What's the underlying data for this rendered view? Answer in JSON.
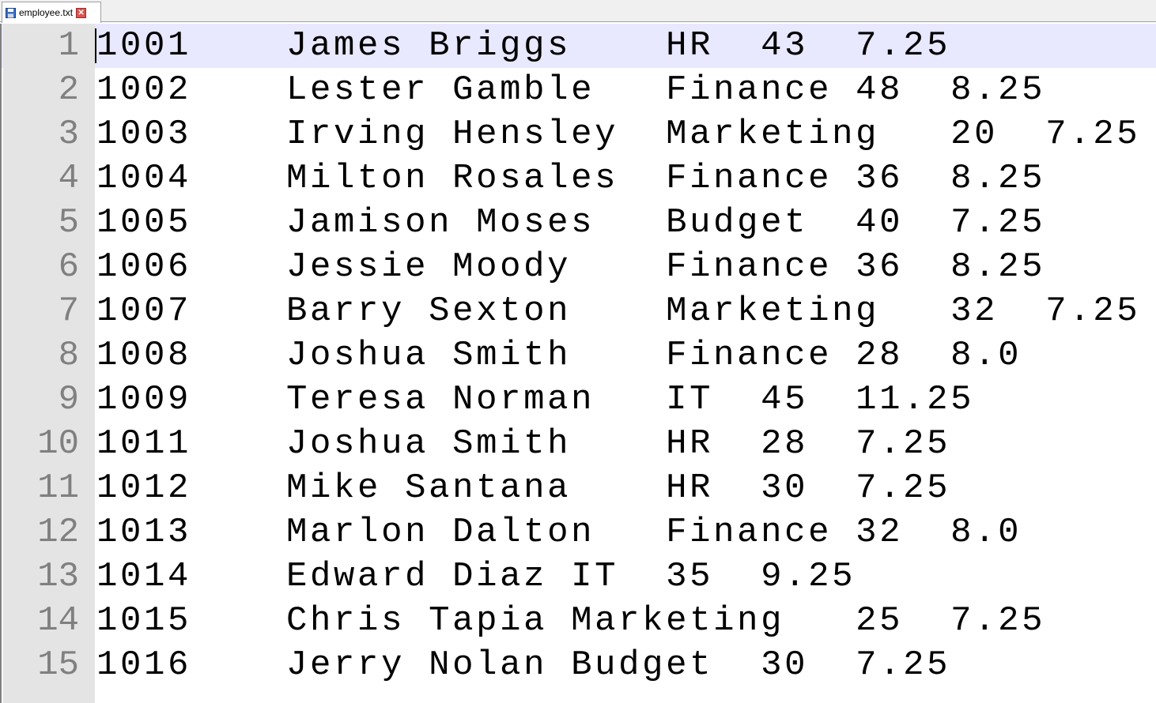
{
  "tab": {
    "title": "employee.txt",
    "save_icon": "floppy-disk-icon",
    "close_icon": "close-icon"
  },
  "colors": {
    "current_line": "#e8e8ff",
    "gutter": "#e4e4e4",
    "line_number": "#808080"
  },
  "lines": [
    {
      "num": "1",
      "text": "1001\tJames Briggs\tHR\t43\t7.25"
    },
    {
      "num": "2",
      "text": "1002\tLester Gamble\tFinance\t48\t8.25"
    },
    {
      "num": "3",
      "text": "1003\tIrving Hensley\tMarketing\t20\t7.25"
    },
    {
      "num": "4",
      "text": "1004\tMilton Rosales\tFinance\t36\t8.25"
    },
    {
      "num": "5",
      "text": "1005\tJamison Moses\tBudget\t40\t7.25"
    },
    {
      "num": "6",
      "text": "1006\tJessie Moody\tFinance\t36\t8.25"
    },
    {
      "num": "7",
      "text": "1007\tBarry Sexton\tMarketing\t32\t7.25"
    },
    {
      "num": "8",
      "text": "1008\tJoshua Smith\tFinance\t28\t8.0"
    },
    {
      "num": "9",
      "text": "1009\tTeresa Norman\tIT\t45\t11.25"
    },
    {
      "num": "10",
      "text": "1011\tJoshua Smith\tHR\t28\t7.25"
    },
    {
      "num": "11",
      "text": "1012\tMike Santana\tHR\t30\t7.25"
    },
    {
      "num": "12",
      "text": "1013\tMarlon Dalton\tFinance\t32\t8.0"
    },
    {
      "num": "13",
      "text": "1014\tEdward Diaz\tIT\t35\t9.25"
    },
    {
      "num": "14",
      "text": "1015\tChris Tapia\tMarketing\t25\t7.25"
    },
    {
      "num": "15",
      "text": "1016\tJerry Nolan\tBudget\t30\t7.25"
    }
  ]
}
